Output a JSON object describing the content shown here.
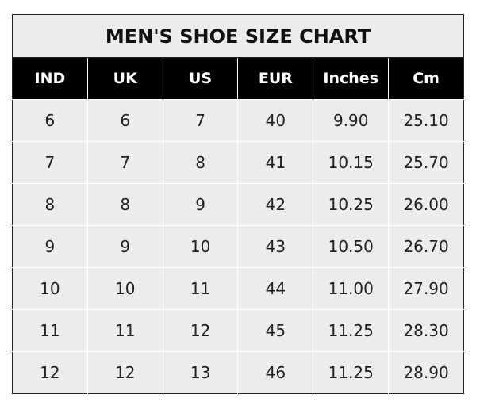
{
  "chart_data": {
    "type": "table",
    "title": "MEN'S SHOE SIZE CHART",
    "columns": [
      "IND",
      "UK",
      "US",
      "EUR",
      "Inches",
      "Cm"
    ],
    "rows": [
      [
        "6",
        "6",
        "7",
        "40",
        "9.90",
        "25.10"
      ],
      [
        "7",
        "7",
        "8",
        "41",
        "10.15",
        "25.70"
      ],
      [
        "8",
        "8",
        "9",
        "42",
        "10.25",
        "26.00"
      ],
      [
        "9",
        "9",
        "10",
        "43",
        "10.50",
        "26.70"
      ],
      [
        "10",
        "10",
        "11",
        "44",
        "11.00",
        "27.90"
      ],
      [
        "11",
        "11",
        "12",
        "45",
        "11.25",
        "28.30"
      ],
      [
        "12",
        "12",
        "13",
        "46",
        "11.25",
        "28.90"
      ]
    ],
    "colors": {
      "header_bg": "#000000",
      "header_text": "#ffffff",
      "cell_bg": "#ececec"
    }
  }
}
